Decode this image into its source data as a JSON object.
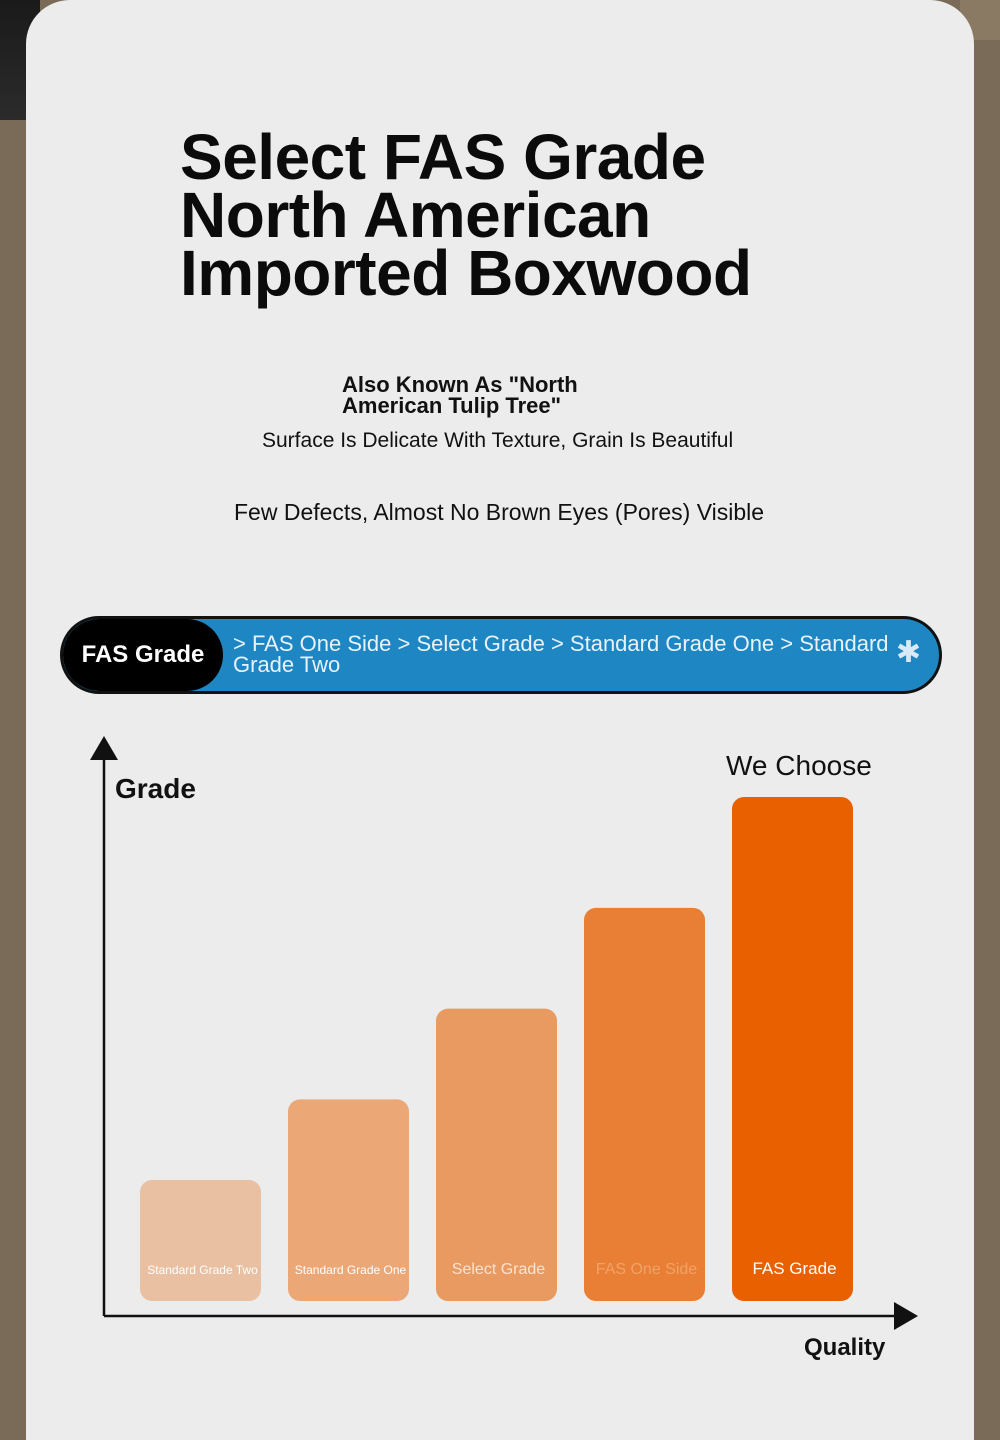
{
  "title_lines": [
    "Select FAS Grade",
    "North American",
    "Imported Boxwood"
  ],
  "aka": "Also Known As \"North American Tulip Tree\"",
  "line2": "Surface Is Delicate With Texture, Grain Is Beautiful",
  "line3": "Few Defects, Almost No Brown Eyes (Pores) Visible",
  "pill": {
    "badge": "FAS Grade",
    "text": "> FAS One Side > Select Grade > Standard Grade One > Standard Grade Two"
  },
  "colors": {
    "pill_blue": "#1e86c3",
    "bar_colors": [
      "#e9c0a2",
      "#eca776",
      "#e99a60",
      "#e97f34",
      "#e86000"
    ]
  },
  "chart_data": {
    "type": "bar",
    "ylabel": "Grade",
    "xlabel": "Quality",
    "annotation": "We Choose",
    "categories": [
      "Standard Grade Two",
      "Standard Grade One",
      "Select Grade",
      "FAS One Side",
      "FAS Grade"
    ],
    "values": [
      1.2,
      2.0,
      2.9,
      3.9,
      5.0
    ],
    "ylim": [
      0,
      5.0
    ],
    "grid": false
  }
}
